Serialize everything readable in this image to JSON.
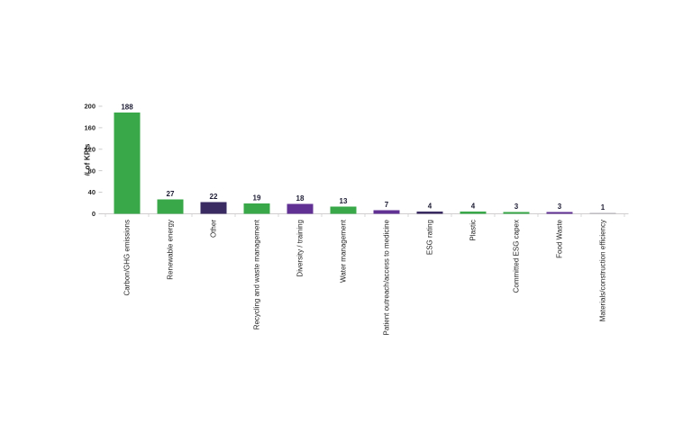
{
  "page": {
    "background": "#ffffff"
  },
  "chart_data": {
    "type": "bar",
    "title": "",
    "xlabel": "",
    "ylabel": "# of KPIs",
    "ylim": [
      0,
      200
    ],
    "yticks": [
      0,
      40,
      80,
      120,
      160,
      200
    ],
    "grid": false,
    "legend": "none",
    "categories": [
      "Carbon/GHG emissions",
      "Renewable energy",
      "Other",
      "Recycling and waste management",
      "Diversity / training",
      "Water management",
      "Patient outreach/access to medicine",
      "ESG rating",
      "Plastic",
      "Committed ESG capex",
      "Food Waste",
      "Materials/construction efficiency"
    ],
    "values": [
      188,
      27,
      22,
      19,
      18,
      13,
      7,
      4,
      4,
      3,
      3,
      1
    ],
    "bar_colors": [
      "#39a849",
      "#39a849",
      "#3a2b63",
      "#39a849",
      "#613294",
      "#39a849",
      "#613294",
      "#3a2b63",
      "#39a849",
      "#39a849",
      "#613294",
      "#b0aeb4"
    ],
    "palette": {
      "green": "#39a849",
      "dark_purple": "#3a2b63",
      "purple": "#613294",
      "gray": "#b0aeb4",
      "axis_line": "#d0cece",
      "tick_mark": "#bfbfbf",
      "tick_text": "#262626",
      "value_text": "#1c1b33"
    }
  }
}
